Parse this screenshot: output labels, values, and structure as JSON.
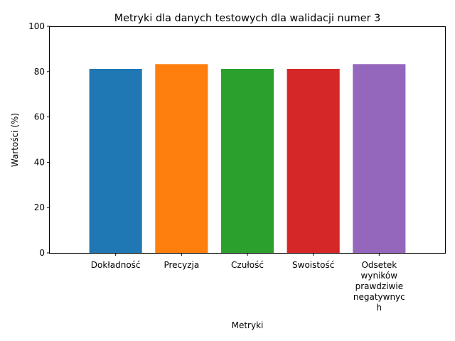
{
  "chart_data": {
    "type": "bar",
    "title": "Metryki dla danych testowych dla walidacji numer 3",
    "xlabel": "Metryki",
    "ylabel": "Wartości (%)",
    "ylim": [
      0,
      100
    ],
    "yticks": [
      0,
      20,
      40,
      60,
      80,
      100
    ],
    "categories": [
      "Dokładność",
      "Precyzja",
      "Czułość",
      "Swoistość",
      "Odsetek\nwyników\nprawdziwie\nnegatywnyc\nh"
    ],
    "values": [
      81.2,
      83.3,
      81.2,
      81.2,
      83.3
    ],
    "colors": [
      "#1f77b4",
      "#ff7f0e",
      "#2ca02c",
      "#d62728",
      "#9467bd"
    ],
    "grid": false,
    "legend": "none"
  }
}
